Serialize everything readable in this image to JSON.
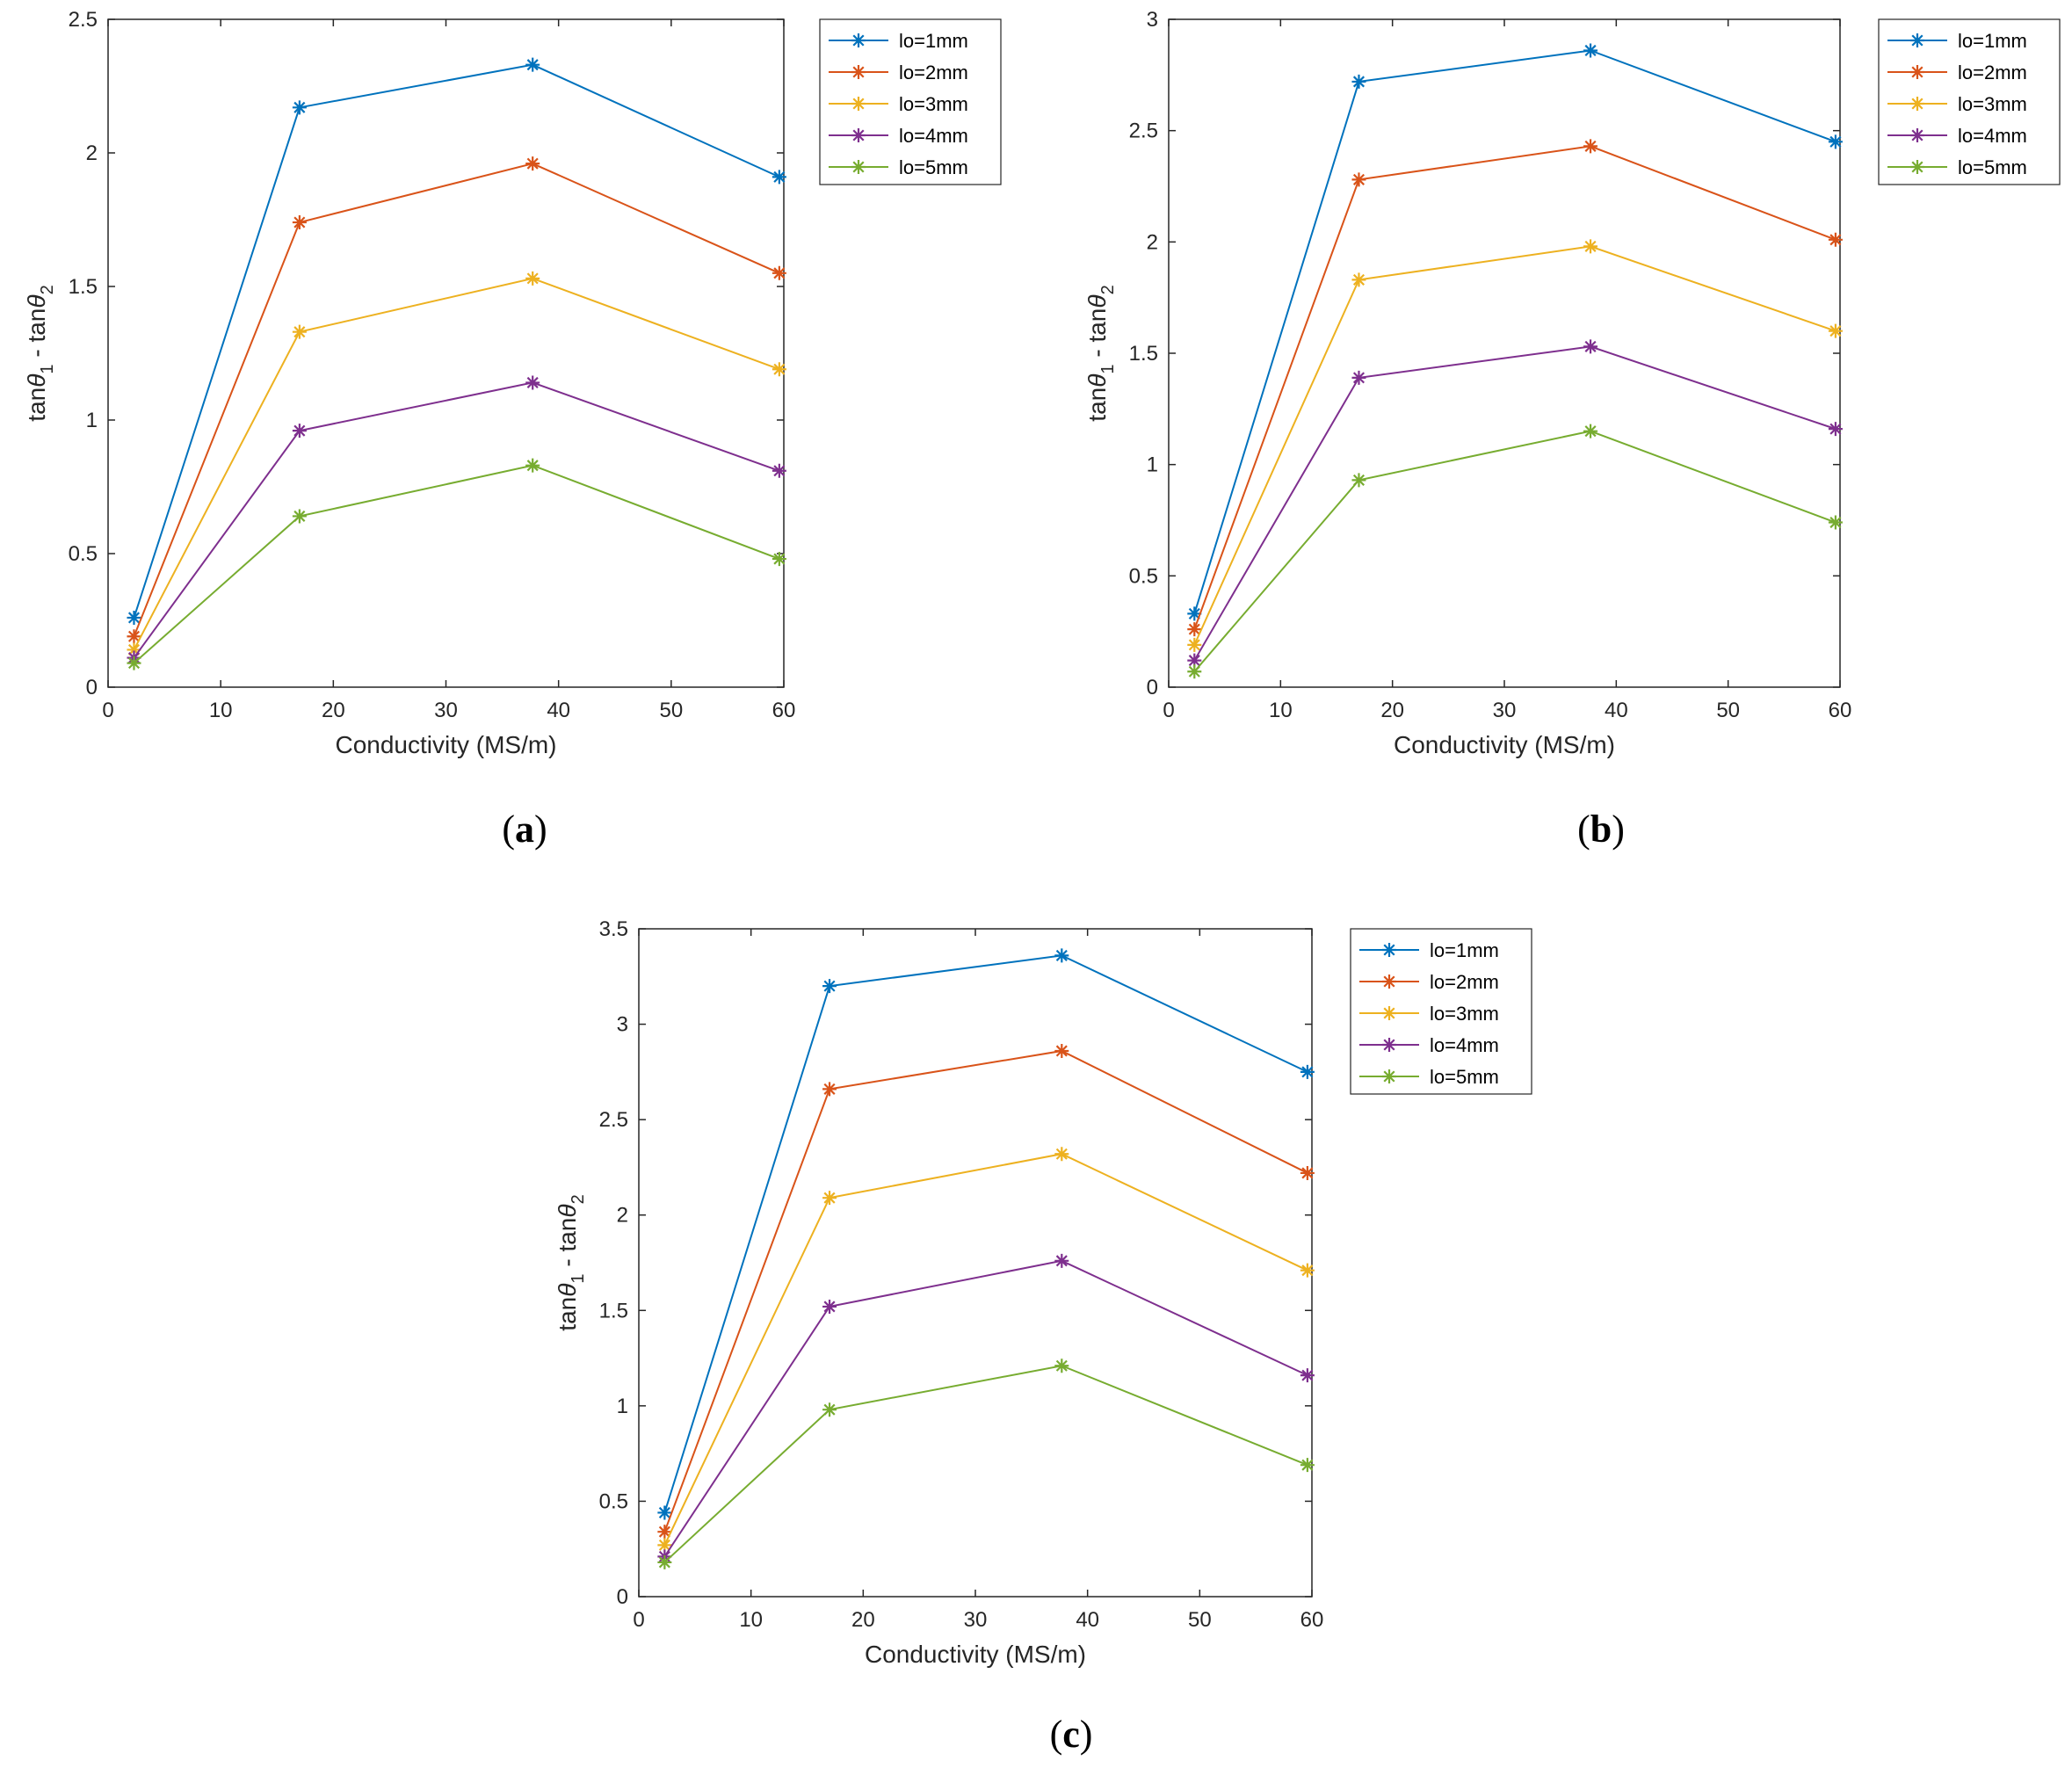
{
  "chart_data": [
    {
      "type": "line",
      "panel": "a",
      "panel_label": "a",
      "xlabel": "Conductivity (MS/m)",
      "ylabel": "tanθ₁ - tanθ₂",
      "xlim": [
        0,
        60
      ],
      "ylim": [
        0,
        2.5
      ],
      "xticks": [
        0,
        10,
        20,
        30,
        40,
        50,
        60
      ],
      "yticks": [
        0,
        0.5,
        1,
        1.5,
        2,
        2.5
      ],
      "ytick_labels": [
        "0",
        "0.5",
        "1",
        "1.5",
        "2",
        "2.5"
      ],
      "x": [
        2.3,
        17,
        37.7,
        59.6
      ],
      "legend_position": "outside-top-right",
      "series": [
        {
          "name": "lo=1mm",
          "color": "#0072BD",
          "values": [
            0.26,
            2.17,
            2.33,
            1.91
          ]
        },
        {
          "name": "lo=2mm",
          "color": "#D95319",
          "values": [
            0.19,
            1.74,
            1.96,
            1.55
          ]
        },
        {
          "name": "lo=3mm",
          "color": "#EDB120",
          "values": [
            0.14,
            1.33,
            1.53,
            1.19
          ]
        },
        {
          "name": "lo=4mm",
          "color": "#7E2F8E",
          "values": [
            0.11,
            0.96,
            1.14,
            0.81
          ]
        },
        {
          "name": "lo=5mm",
          "color": "#77AC30",
          "values": [
            0.09,
            0.64,
            0.83,
            0.48
          ]
        }
      ]
    },
    {
      "type": "line",
      "panel": "b",
      "panel_label": "b",
      "xlabel": "Conductivity (MS/m)",
      "ylabel": "tanθ₁ - tanθ₂",
      "xlim": [
        0,
        60
      ],
      "ylim": [
        0,
        3
      ],
      "xticks": [
        0,
        10,
        20,
        30,
        40,
        50,
        60
      ],
      "yticks": [
        0,
        0.5,
        1,
        1.5,
        2,
        2.5,
        3
      ],
      "ytick_labels": [
        "0",
        "0.5",
        "1",
        "1.5",
        "2",
        "2.5",
        "3"
      ],
      "x": [
        2.3,
        17,
        37.7,
        59.6
      ],
      "legend_position": "outside-top-right",
      "series": [
        {
          "name": "lo=1mm",
          "color": "#0072BD",
          "values": [
            0.33,
            2.72,
            2.86,
            2.45
          ]
        },
        {
          "name": "lo=2mm",
          "color": "#D95319",
          "values": [
            0.26,
            2.28,
            2.43,
            2.01
          ]
        },
        {
          "name": "lo=3mm",
          "color": "#EDB120",
          "values": [
            0.19,
            1.83,
            1.98,
            1.6
          ]
        },
        {
          "name": "lo=4mm",
          "color": "#7E2F8E",
          "values": [
            0.12,
            1.39,
            1.53,
            1.16
          ]
        },
        {
          "name": "lo=5mm",
          "color": "#77AC30",
          "values": [
            0.07,
            0.93,
            1.15,
            0.74
          ]
        }
      ]
    },
    {
      "type": "line",
      "panel": "c",
      "panel_label": "c",
      "xlabel": "Conductivity (MS/m)",
      "ylabel": "tanθ₁ - tanθ₂",
      "xlim": [
        0,
        60
      ],
      "ylim": [
        0,
        3.5
      ],
      "xticks": [
        0,
        10,
        20,
        30,
        40,
        50,
        60
      ],
      "yticks": [
        0,
        0.5,
        1,
        1.5,
        2,
        2.5,
        3,
        3.5
      ],
      "ytick_labels": [
        "0",
        "0.5",
        "1",
        "1.5",
        "2",
        "2.5",
        "3",
        "3.5"
      ],
      "x": [
        2.3,
        17,
        37.7,
        59.6
      ],
      "legend_position": "outside-top-right",
      "series": [
        {
          "name": "lo=1mm",
          "color": "#0072BD",
          "values": [
            0.44,
            3.2,
            3.36,
            2.75
          ]
        },
        {
          "name": "lo=2mm",
          "color": "#D95319",
          "values": [
            0.34,
            2.66,
            2.86,
            2.22
          ]
        },
        {
          "name": "lo=3mm",
          "color": "#EDB120",
          "values": [
            0.27,
            2.09,
            2.32,
            1.71
          ]
        },
        {
          "name": "lo=4mm",
          "color": "#7E2F8E",
          "values": [
            0.21,
            1.52,
            1.76,
            1.16
          ]
        },
        {
          "name": "lo=5mm",
          "color": "#77AC30",
          "values": [
            0.18,
            0.98,
            1.21,
            0.69
          ]
        }
      ]
    }
  ]
}
